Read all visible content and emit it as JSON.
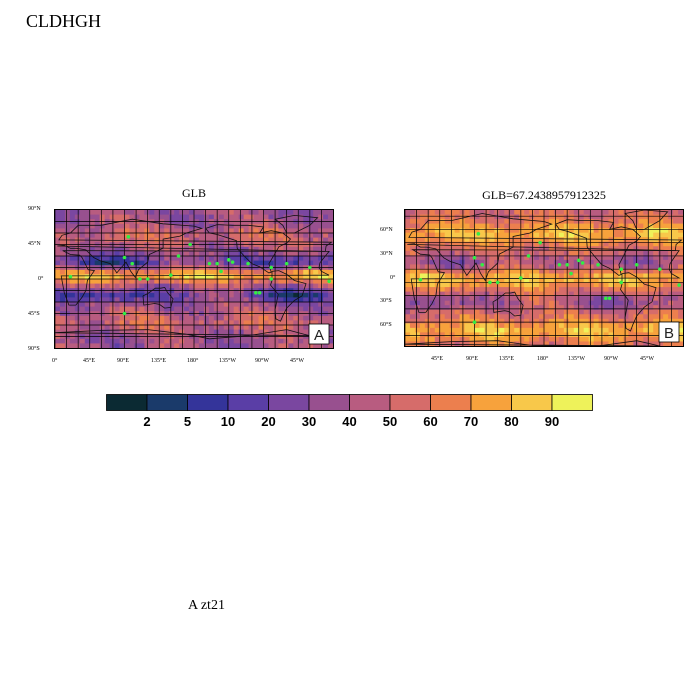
{
  "figure_title": "CLDHGH",
  "footer_note": "A  zt21",
  "panels": [
    {
      "title": "GLB",
      "corner_label": "A",
      "lat_labels": [
        "90°N",
        "45°N",
        "0°",
        "45°S",
        "90°S"
      ],
      "lon_labels": [
        "0°",
        "45°E",
        "90°E",
        "135°E",
        "180°",
        "135°W",
        "90°W",
        "45°W"
      ]
    },
    {
      "title": "GLB=67.2438957912325",
      "corner_label": "B",
      "lat_labels": [
        "60°N",
        "30°N",
        "0°",
        "30°S",
        "60°S"
      ],
      "lon_labels": [
        "45°E",
        "90°E",
        "135°E",
        "180°",
        "135°W",
        "90°W",
        "45°W"
      ]
    }
  ],
  "colorbar": {
    "levels": [
      "2",
      "5",
      "10",
      "20",
      "30",
      "40",
      "50",
      "60",
      "70",
      "80",
      "90"
    ],
    "colors": [
      "#0b2a33",
      "#1a3a6a",
      "#34349a",
      "#5a3ea6",
      "#7a47a0",
      "#98508f",
      "#b85c80",
      "#d66c6a",
      "#ec7f4e",
      "#f7a23c",
      "#f8c84a",
      "#eef25a"
    ]
  },
  "marker_color": "#33ee44"
}
